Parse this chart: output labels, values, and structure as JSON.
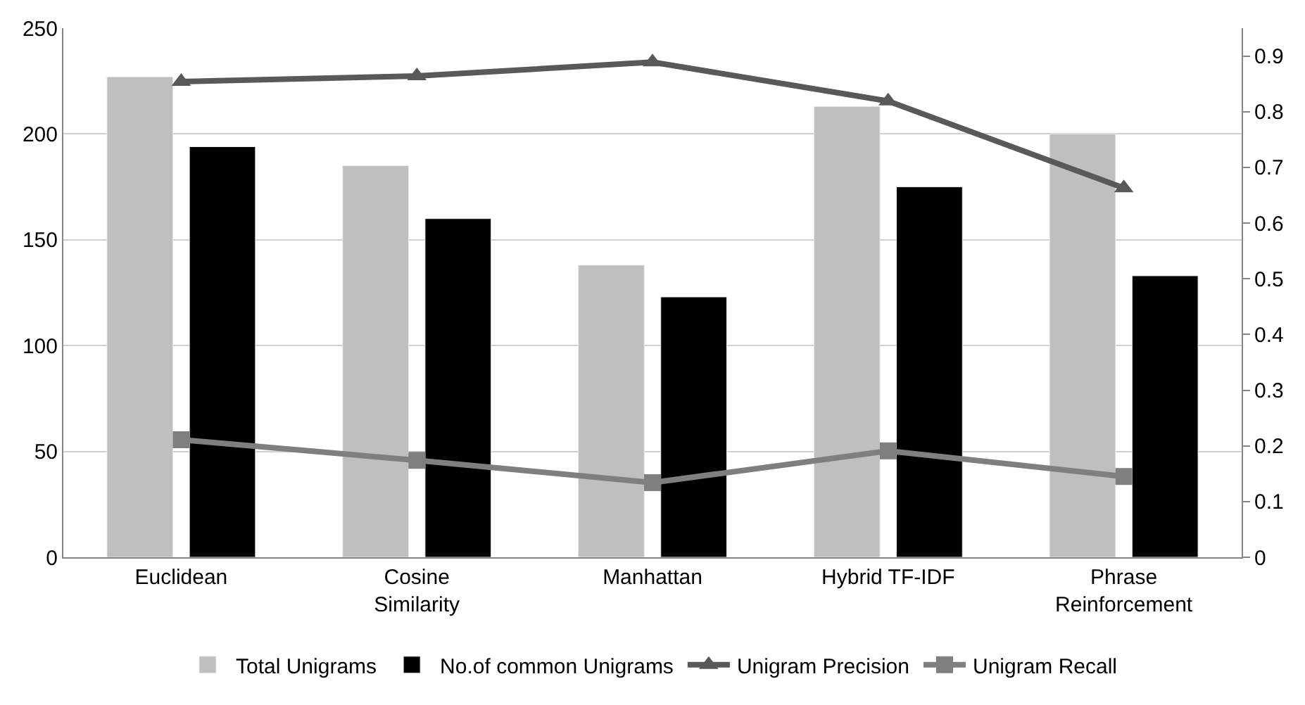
{
  "chart_data": {
    "type": "bar",
    "categories": [
      "Euclidean",
      "Cosine Similarity",
      "Manhattan",
      "Hybrid TF-IDF",
      "Phrase Reinforcement"
    ],
    "series": [
      {
        "name": "Total Unigrams",
        "color": "#bfbfbf",
        "values": [
          227,
          185,
          138,
          213,
          200
        ]
      },
      {
        "name": "No.of common Unigrams",
        "color": "#000000",
        "values": [
          194,
          160,
          123,
          175,
          133
        ]
      },
      {
        "name": "Unigram Precision",
        "type": "line",
        "axis": "y2",
        "marker": "triangle",
        "color": "#595959",
        "values": [
          0.854,
          0.864,
          0.889,
          0.819,
          0.663
        ]
      },
      {
        "name": "Unigram Recall",
        "type": "line",
        "axis": "y2",
        "marker": "square",
        "color": "#7f7f7f",
        "values": [
          0.211,
          0.174,
          0.134,
          0.191,
          0.145
        ]
      }
    ],
    "ylim": [
      0,
      250
    ],
    "yticks": [
      0,
      50,
      100,
      150,
      200,
      250
    ],
    "y2lim": [
      0,
      0.95
    ],
    "y2ticks": [
      0,
      0.1,
      0.2,
      0.3,
      0.4,
      0.5,
      0.6,
      0.7,
      0.8,
      0.9
    ],
    "grid": "y",
    "legend": "bottom"
  }
}
